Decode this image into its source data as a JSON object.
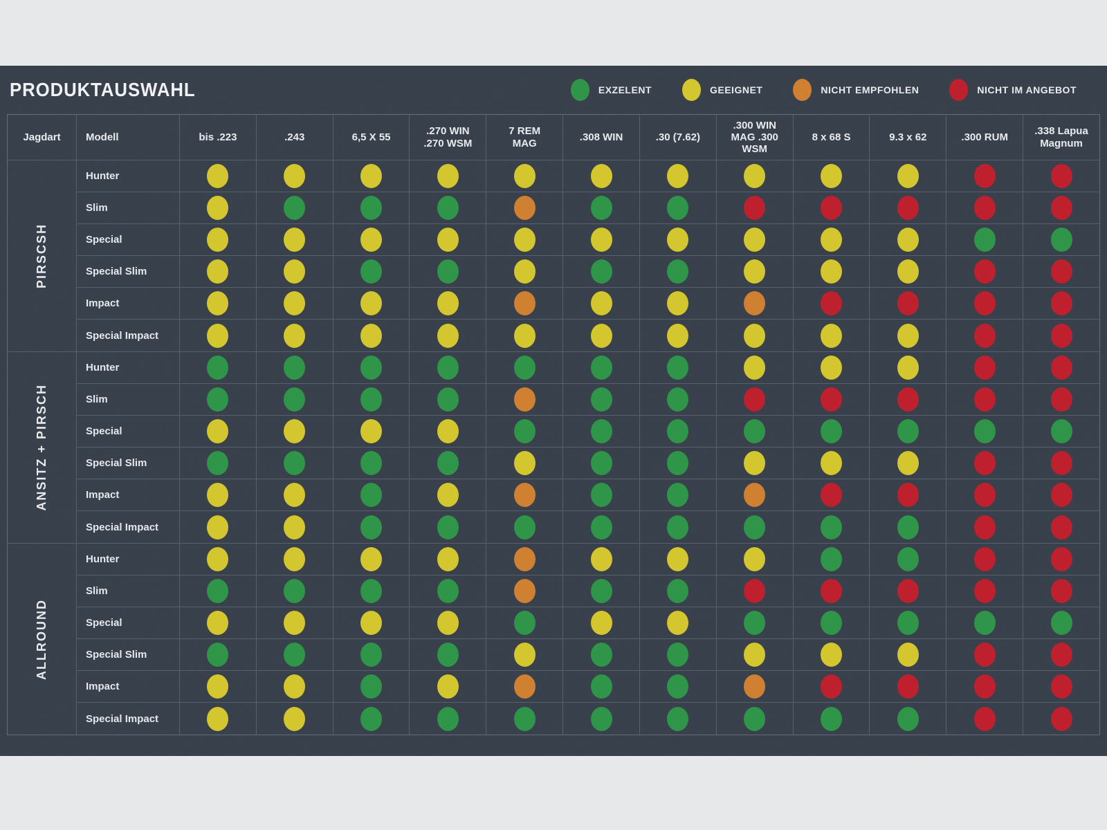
{
  "chart_data": {
    "type": "table",
    "title": "PRODUKTAUSWAHL",
    "legend": [
      {
        "code": "G",
        "label": "EXZELENT",
        "color": "#2f9549"
      },
      {
        "code": "Y",
        "label": "GEEIGNET",
        "color": "#d3c62e"
      },
      {
        "code": "O",
        "label": "NICHT EMPFOHLEN",
        "color": "#cf8030"
      },
      {
        "code": "R",
        "label": "NICHT IM ANGEBOT",
        "color": "#be202e"
      }
    ],
    "row_headers": {
      "jagdart": "Jagdart",
      "modell": "Modell"
    },
    "columns": [
      "bis .223",
      ".243",
      "6,5 X 55",
      ".270 WIN\n.270 WSM",
      "7 REM\nMAG",
      ".308 WIN",
      ".30 (7.62)",
      ".300 WIN\nMAG .300\nWSM",
      "8 x 68 S",
      "9.3 x 62",
      ".300 RUM",
      ".338 Lapua\nMagnum"
    ],
    "row_groups": [
      {
        "label": "PIRSCSH",
        "rows": [
          {
            "model": "Hunter",
            "ratings": [
              "Y",
              "Y",
              "Y",
              "Y",
              "Y",
              "Y",
              "Y",
              "Y",
              "Y",
              "Y",
              "R",
              "R"
            ]
          },
          {
            "model": "Slim",
            "ratings": [
              "Y",
              "G",
              "G",
              "G",
              "O",
              "G",
              "G",
              "R",
              "R",
              "R",
              "R",
              "R"
            ]
          },
          {
            "model": "Special",
            "ratings": [
              "Y",
              "Y",
              "Y",
              "Y",
              "Y",
              "Y",
              "Y",
              "Y",
              "Y",
              "Y",
              "G",
              "G"
            ]
          },
          {
            "model": "Special Slim",
            "ratings": [
              "Y",
              "Y",
              "G",
              "G",
              "Y",
              "G",
              "G",
              "Y",
              "Y",
              "Y",
              "R",
              "R"
            ]
          },
          {
            "model": "Impact",
            "ratings": [
              "Y",
              "Y",
              "Y",
              "Y",
              "O",
              "Y",
              "Y",
              "O",
              "R",
              "R",
              "R",
              "R"
            ]
          },
          {
            "model": "Special Impact",
            "ratings": [
              "Y",
              "Y",
              "Y",
              "Y",
              "Y",
              "Y",
              "Y",
              "Y",
              "Y",
              "Y",
              "R",
              "R"
            ]
          }
        ]
      },
      {
        "label": "ANSITZ + PIRSCH",
        "rows": [
          {
            "model": "Hunter",
            "ratings": [
              "G",
              "G",
              "G",
              "G",
              "G",
              "G",
              "G",
              "Y",
              "Y",
              "Y",
              "R",
              "R"
            ]
          },
          {
            "model": "Slim",
            "ratings": [
              "G",
              "G",
              "G",
              "G",
              "O",
              "G",
              "G",
              "R",
              "R",
              "R",
              "R",
              "R"
            ]
          },
          {
            "model": "Special",
            "ratings": [
              "Y",
              "Y",
              "Y",
              "Y",
              "G",
              "G",
              "G",
              "G",
              "G",
              "G",
              "G",
              "G"
            ]
          },
          {
            "model": "Special Slim",
            "ratings": [
              "G",
              "G",
              "G",
              "G",
              "Y",
              "G",
              "G",
              "Y",
              "Y",
              "Y",
              "R",
              "R"
            ]
          },
          {
            "model": "Impact",
            "ratings": [
              "Y",
              "Y",
              "G",
              "Y",
              "O",
              "G",
              "G",
              "O",
              "R",
              "R",
              "R",
              "R"
            ]
          },
          {
            "model": "Special Impact",
            "ratings": [
              "Y",
              "Y",
              "G",
              "G",
              "G",
              "G",
              "G",
              "G",
              "G",
              "G",
              "R",
              "R"
            ]
          }
        ]
      },
      {
        "label": "ALLROUND",
        "rows": [
          {
            "model": "Hunter",
            "ratings": [
              "Y",
              "Y",
              "Y",
              "Y",
              "O",
              "Y",
              "Y",
              "Y",
              "G",
              "G",
              "R",
              "R"
            ]
          },
          {
            "model": "Slim",
            "ratings": [
              "G",
              "G",
              "G",
              "G",
              "O",
              "G",
              "G",
              "R",
              "R",
              "R",
              "R",
              "R"
            ]
          },
          {
            "model": "Special",
            "ratings": [
              "Y",
              "Y",
              "Y",
              "Y",
              "G",
              "Y",
              "Y",
              "G",
              "G",
              "G",
              "G",
              "G"
            ]
          },
          {
            "model": "Special Slim",
            "ratings": [
              "G",
              "G",
              "G",
              "G",
              "Y",
              "G",
              "G",
              "Y",
              "Y",
              "Y",
              "R",
              "R"
            ]
          },
          {
            "model": "Impact",
            "ratings": [
              "Y",
              "Y",
              "G",
              "Y",
              "O",
              "G",
              "G",
              "O",
              "R",
              "R",
              "R",
              "R"
            ]
          },
          {
            "model": "Special Impact",
            "ratings": [
              "Y",
              "Y",
              "G",
              "G",
              "G",
              "G",
              "G",
              "G",
              "G",
              "G",
              "R",
              "R"
            ]
          }
        ]
      }
    ],
    "colors": {
      "panel_bg": "#363e49",
      "band_bg": "#e7e8e9",
      "grid_line": "#555e6d",
      "text": "#e9ebee"
    }
  }
}
